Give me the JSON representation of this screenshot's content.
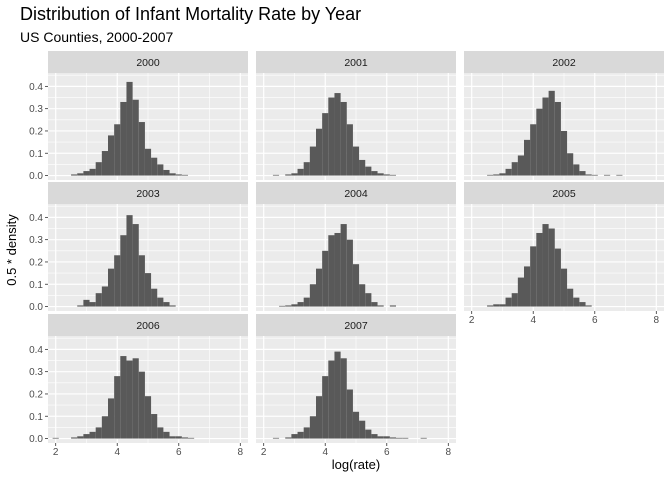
{
  "chart_data": {
    "type": "bar",
    "title": "Distribution of Infant Mortality Rate by Year",
    "subtitle": "US Counties, 2000-2007",
    "xlabel": "log(rate)",
    "ylabel": "0.5 * density",
    "xlim": [
      1.75,
      8.25
    ],
    "ylim": [
      -0.02,
      0.46
    ],
    "x_ticks": [
      2,
      4,
      6,
      8
    ],
    "y_ticks": [
      0.0,
      0.1,
      0.2,
      0.3,
      0.4
    ],
    "x_tick_labels": [
      "2",
      "4",
      "6",
      "8"
    ],
    "y_tick_labels": [
      "0.0",
      "0.1",
      "0.2",
      "0.3",
      "0.4"
    ],
    "grid": true,
    "bar_color": "#595959",
    "panel_color": "#ebebeb",
    "strip_color": "#d9d9d9",
    "bin_width": 0.2,
    "panels": [
      {
        "label": "2000",
        "bins": [
          {
            "x": 2.6,
            "y": 0.005
          },
          {
            "x": 2.8,
            "y": 0.01
          },
          {
            "x": 3.0,
            "y": 0.02
          },
          {
            "x": 3.2,
            "y": 0.03
          },
          {
            "x": 3.4,
            "y": 0.06
          },
          {
            "x": 3.6,
            "y": 0.11
          },
          {
            "x": 3.8,
            "y": 0.18
          },
          {
            "x": 4.0,
            "y": 0.23
          },
          {
            "x": 4.2,
            "y": 0.33
          },
          {
            "x": 4.4,
            "y": 0.42
          },
          {
            "x": 4.6,
            "y": 0.34
          },
          {
            "x": 4.8,
            "y": 0.24
          },
          {
            "x": 5.0,
            "y": 0.12
          },
          {
            "x": 5.2,
            "y": 0.08
          },
          {
            "x": 5.4,
            "y": 0.05
          },
          {
            "x": 5.6,
            "y": 0.025
          },
          {
            "x": 5.8,
            "y": 0.01
          },
          {
            "x": 6.0,
            "y": 0.005
          },
          {
            "x": 6.2,
            "y": 0.003
          }
        ]
      },
      {
        "label": "2001",
        "bins": [
          {
            "x": 2.4,
            "y": 0.003
          },
          {
            "x": 2.8,
            "y": 0.005
          },
          {
            "x": 3.0,
            "y": 0.01
          },
          {
            "x": 3.2,
            "y": 0.03
          },
          {
            "x": 3.4,
            "y": 0.06
          },
          {
            "x": 3.6,
            "y": 0.13
          },
          {
            "x": 3.8,
            "y": 0.21
          },
          {
            "x": 4.0,
            "y": 0.28
          },
          {
            "x": 4.2,
            "y": 0.35
          },
          {
            "x": 4.4,
            "y": 0.37
          },
          {
            "x": 4.6,
            "y": 0.33
          },
          {
            "x": 4.8,
            "y": 0.23
          },
          {
            "x": 5.0,
            "y": 0.13
          },
          {
            "x": 5.2,
            "y": 0.07
          },
          {
            "x": 5.4,
            "y": 0.04
          },
          {
            "x": 5.6,
            "y": 0.02
          },
          {
            "x": 5.8,
            "y": 0.01
          },
          {
            "x": 6.0,
            "y": 0.005
          },
          {
            "x": 6.2,
            "y": 0.003
          }
        ]
      },
      {
        "label": "2002",
        "bins": [
          {
            "x": 2.6,
            "y": 0.003
          },
          {
            "x": 2.8,
            "y": 0.005
          },
          {
            "x": 3.0,
            "y": 0.01
          },
          {
            "x": 3.2,
            "y": 0.03
          },
          {
            "x": 3.4,
            "y": 0.06
          },
          {
            "x": 3.6,
            "y": 0.09
          },
          {
            "x": 3.8,
            "y": 0.16
          },
          {
            "x": 4.0,
            "y": 0.23
          },
          {
            "x": 4.2,
            "y": 0.3
          },
          {
            "x": 4.4,
            "y": 0.35
          },
          {
            "x": 4.6,
            "y": 0.38
          },
          {
            "x": 4.8,
            "y": 0.33
          },
          {
            "x": 5.0,
            "y": 0.2
          },
          {
            "x": 5.2,
            "y": 0.1
          },
          {
            "x": 5.4,
            "y": 0.05
          },
          {
            "x": 5.6,
            "y": 0.02
          },
          {
            "x": 5.8,
            "y": 0.005
          },
          {
            "x": 6.0,
            "y": 0.003
          },
          {
            "x": 6.4,
            "y": 0.003
          },
          {
            "x": 6.8,
            "y": 0.003
          }
        ]
      },
      {
        "label": "2003",
        "bins": [
          {
            "x": 2.8,
            "y": 0.005
          },
          {
            "x": 3.0,
            "y": 0.03
          },
          {
            "x": 3.2,
            "y": 0.02
          },
          {
            "x": 3.4,
            "y": 0.06
          },
          {
            "x": 3.6,
            "y": 0.09
          },
          {
            "x": 3.8,
            "y": 0.17
          },
          {
            "x": 4.0,
            "y": 0.23
          },
          {
            "x": 4.2,
            "y": 0.32
          },
          {
            "x": 4.4,
            "y": 0.41
          },
          {
            "x": 4.6,
            "y": 0.37
          },
          {
            "x": 4.8,
            "y": 0.23
          },
          {
            "x": 5.0,
            "y": 0.15
          },
          {
            "x": 5.2,
            "y": 0.08
          },
          {
            "x": 5.4,
            "y": 0.04
          },
          {
            "x": 5.6,
            "y": 0.02
          },
          {
            "x": 5.8,
            "y": 0.005
          }
        ]
      },
      {
        "label": "2004",
        "bins": [
          {
            "x": 2.6,
            "y": 0.003
          },
          {
            "x": 2.8,
            "y": 0.005
          },
          {
            "x": 3.0,
            "y": 0.01
          },
          {
            "x": 3.2,
            "y": 0.02
          },
          {
            "x": 3.4,
            "y": 0.04
          },
          {
            "x": 3.6,
            "y": 0.1
          },
          {
            "x": 3.8,
            "y": 0.17
          },
          {
            "x": 4.0,
            "y": 0.25
          },
          {
            "x": 4.2,
            "y": 0.32
          },
          {
            "x": 4.4,
            "y": 0.33
          },
          {
            "x": 4.6,
            "y": 0.37
          },
          {
            "x": 4.8,
            "y": 0.3
          },
          {
            "x": 5.0,
            "y": 0.19
          },
          {
            "x": 5.2,
            "y": 0.1
          },
          {
            "x": 5.4,
            "y": 0.06
          },
          {
            "x": 5.6,
            "y": 0.02
          },
          {
            "x": 5.8,
            "y": 0.005
          },
          {
            "x": 6.2,
            "y": 0.005
          }
        ]
      },
      {
        "label": "2005",
        "bins": [
          {
            "x": 2.6,
            "y": 0.005
          },
          {
            "x": 2.8,
            "y": 0.01
          },
          {
            "x": 3.0,
            "y": 0.01
          },
          {
            "x": 3.2,
            "y": 0.04
          },
          {
            "x": 3.4,
            "y": 0.06
          },
          {
            "x": 3.6,
            "y": 0.13
          },
          {
            "x": 3.8,
            "y": 0.18
          },
          {
            "x": 4.0,
            "y": 0.27
          },
          {
            "x": 4.2,
            "y": 0.33
          },
          {
            "x": 4.4,
            "y": 0.37
          },
          {
            "x": 4.6,
            "y": 0.35
          },
          {
            "x": 4.8,
            "y": 0.26
          },
          {
            "x": 5.0,
            "y": 0.17
          },
          {
            "x": 5.2,
            "y": 0.08
          },
          {
            "x": 5.4,
            "y": 0.04
          },
          {
            "x": 5.6,
            "y": 0.02
          },
          {
            "x": 5.8,
            "y": 0.005
          }
        ]
      },
      {
        "label": "2006",
        "bins": [
          {
            "x": 2.0,
            "y": 0.003
          },
          {
            "x": 2.6,
            "y": 0.005
          },
          {
            "x": 2.8,
            "y": 0.01
          },
          {
            "x": 3.0,
            "y": 0.02
          },
          {
            "x": 3.2,
            "y": 0.03
          },
          {
            "x": 3.4,
            "y": 0.05
          },
          {
            "x": 3.6,
            "y": 0.1
          },
          {
            "x": 3.8,
            "y": 0.18
          },
          {
            "x": 4.0,
            "y": 0.28
          },
          {
            "x": 4.2,
            "y": 0.37
          },
          {
            "x": 4.4,
            "y": 0.35
          },
          {
            "x": 4.6,
            "y": 0.36
          },
          {
            "x": 4.8,
            "y": 0.3
          },
          {
            "x": 5.0,
            "y": 0.19
          },
          {
            "x": 5.2,
            "y": 0.11
          },
          {
            "x": 5.4,
            "y": 0.05
          },
          {
            "x": 5.6,
            "y": 0.03
          },
          {
            "x": 5.8,
            "y": 0.01
          },
          {
            "x": 6.0,
            "y": 0.01
          },
          {
            "x": 6.2,
            "y": 0.005
          },
          {
            "x": 6.4,
            "y": 0.003
          }
        ]
      },
      {
        "label": "2007",
        "bins": [
          {
            "x": 2.4,
            "y": 0.003
          },
          {
            "x": 2.8,
            "y": 0.005
          },
          {
            "x": 3.0,
            "y": 0.02
          },
          {
            "x": 3.2,
            "y": 0.03
          },
          {
            "x": 3.4,
            "y": 0.05
          },
          {
            "x": 3.6,
            "y": 0.1
          },
          {
            "x": 3.8,
            "y": 0.19
          },
          {
            "x": 4.0,
            "y": 0.28
          },
          {
            "x": 4.2,
            "y": 0.35
          },
          {
            "x": 4.4,
            "y": 0.39
          },
          {
            "x": 4.6,
            "y": 0.36
          },
          {
            "x": 4.8,
            "y": 0.22
          },
          {
            "x": 5.0,
            "y": 0.12
          },
          {
            "x": 5.2,
            "y": 0.08
          },
          {
            "x": 5.4,
            "y": 0.04
          },
          {
            "x": 5.6,
            "y": 0.02
          },
          {
            "x": 5.8,
            "y": 0.01
          },
          {
            "x": 6.0,
            "y": 0.01
          },
          {
            "x": 6.2,
            "y": 0.005
          },
          {
            "x": 6.4,
            "y": 0.003
          },
          {
            "x": 6.6,
            "y": 0.003
          },
          {
            "x": 7.2,
            "y": 0.003
          }
        ]
      }
    ]
  }
}
